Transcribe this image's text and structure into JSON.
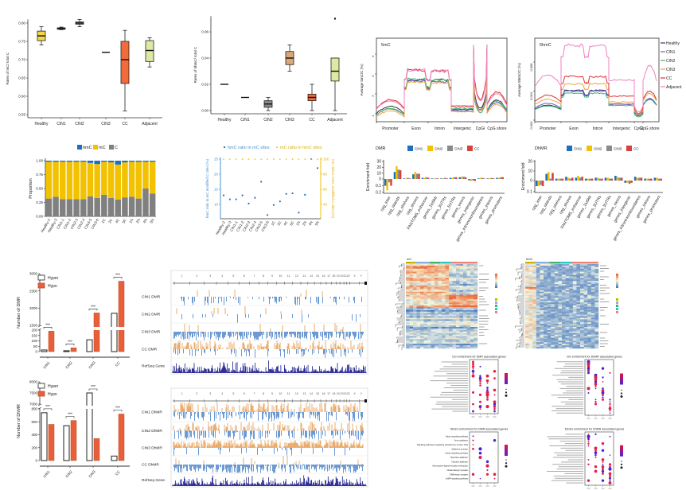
{
  "chart_data": [
    {
      "type": "box",
      "ylabel": "Rates of mC/ total C",
      "yticks": [
        "0.55",
        "0.60",
        "0.65",
        "0.70",
        "0.75",
        "0.80"
      ],
      "ylim": [
        0.55,
        0.81
      ],
      "categories": [
        "Healthy",
        "CIN1",
        "CIN2",
        "CIN3",
        "CC",
        "Adjacent"
      ],
      "boxes": [
        {
          "min": 0.74,
          "q1": 0.752,
          "median": 0.765,
          "q3": 0.778,
          "max": 0.79,
          "color": "#f2d64b"
        },
        {
          "min": 0.782,
          "q1": 0.783,
          "median": 0.785,
          "q3": 0.787,
          "max": 0.789,
          "color": "#555555"
        },
        {
          "min": 0.79,
          "q1": 0.797,
          "median": 0.8,
          "q3": 0.803,
          "max": 0.81,
          "color": "#8a8a8a"
        },
        {
          "min": 0.72,
          "q1": 0.72,
          "median": 0.72,
          "q3": 0.72,
          "max": 0.72,
          "color": "#d9a877"
        },
        {
          "min": 0.56,
          "q1": 0.635,
          "median": 0.7,
          "q3": 0.75,
          "max": 0.78,
          "color": "#f26b3a"
        },
        {
          "min": 0.68,
          "q1": 0.695,
          "median": 0.725,
          "q3": 0.752,
          "max": 0.76,
          "color": "#dfe9a3"
        }
      ]
    },
    {
      "type": "box",
      "ylabel": "Rates of 5hmC/ total C",
      "yticks": [
        "0.00",
        "0.02",
        "0.04",
        "0.06"
      ],
      "ylim": [
        0,
        0.072
      ],
      "categories": [
        "Healthy",
        "CIN1",
        "CIN2",
        "CIN3",
        "CC",
        "Adjacent"
      ],
      "boxes": [
        {
          "min": 0.02,
          "q1": 0.02,
          "median": 0.02,
          "q3": 0.02,
          "max": 0.02,
          "color": "#f2d64b"
        },
        {
          "min": 0.01,
          "q1": 0.01,
          "median": 0.01,
          "q3": 0.01,
          "max": 0.01,
          "color": "#555555"
        },
        {
          "min": 0.0,
          "q1": 0.0025,
          "median": 0.005,
          "q3": 0.0075,
          "max": 0.01,
          "color": "#8a8a8a"
        },
        {
          "min": 0.03,
          "q1": 0.035,
          "median": 0.04,
          "q3": 0.045,
          "max": 0.05,
          "color": "#d9a877"
        },
        {
          "min": 0.0,
          "q1": 0.0075,
          "median": 0.01,
          "q3": 0.0125,
          "max": 0.02,
          "color": "#f26b3a"
        },
        {
          "min": 0.0,
          "q1": 0.0225,
          "median": 0.03,
          "q3": 0.04,
          "max": 0.04,
          "outliers": [
            0.07
          ],
          "color": "#dfe9a3"
        }
      ]
    },
    {
      "type": "line",
      "title": "5mC",
      "ylabel": "Average 5mC/C (%)",
      "yticks": [
        "1",
        "2",
        "3",
        "4"
      ],
      "ylim": [
        0.5,
        4.6
      ],
      "regions": [
        "Promoter",
        "Exon",
        "Intron",
        "Intergenic",
        "CpGi",
        "CpG shore"
      ],
      "series": [
        {
          "name": "Healthy",
          "color": "#333333",
          "values": [
            1.2,
            2.7,
            2.7,
            1.2,
            1.7,
            1.6
          ]
        },
        {
          "name": "CIN1",
          "color": "#6a5acd",
          "values": [
            1.1,
            2.65,
            2.6,
            1.15,
            1.6,
            1.5
          ]
        },
        {
          "name": "CIN2",
          "color": "#3cb371",
          "values": [
            1.1,
            2.75,
            2.7,
            1.25,
            1.4,
            1.55
          ]
        },
        {
          "name": "CIN3",
          "color": "#f0a040",
          "values": [
            1.0,
            2.6,
            2.55,
            1.1,
            1.5,
            1.4
          ]
        },
        {
          "name": "CC",
          "color": "#e03030",
          "values": [
            1.5,
            3.2,
            3.15,
            1.35,
            2.3,
            2.0
          ]
        },
        {
          "name": "Adjacent",
          "color": "#f080c0",
          "values": [
            1.45,
            3.2,
            3.15,
            1.4,
            2.2,
            1.9
          ]
        }
      ]
    },
    {
      "type": "line",
      "title": "5hmC",
      "ylabel": "Average 5hmC/C (%)",
      "yticks": [
        "0.000",
        "0.004",
        "0.008"
      ],
      "ylim": [
        0,
        0.0115
      ],
      "regions": [
        "Promoter",
        "Exon",
        "Intron",
        "Intergenic",
        "CpGi",
        "CpG shore"
      ],
      "series": [
        {
          "name": "Healthy",
          "color": "#333366",
          "values": [
            0.0018,
            0.0041,
            0.0041,
            0.0022,
            0.0009,
            0.0028
          ]
        },
        {
          "name": "CIN1",
          "color": "#6a5acd",
          "values": [
            0.002,
            0.004,
            0.004,
            0.0022,
            0.0008,
            0.0028
          ]
        },
        {
          "name": "CIN2",
          "color": "#3cb371",
          "values": [
            0.0017,
            0.0037,
            0.0037,
            0.002,
            0.0006,
            0.0027
          ]
        },
        {
          "name": "CIN3",
          "color": "#f0a040",
          "values": [
            0.0025,
            0.005,
            0.005,
            0.0025,
            0.001,
            0.0035
          ]
        },
        {
          "name": "CC",
          "color": "#e03030",
          "values": [
            0.003,
            0.006,
            0.006,
            0.0033,
            0.0012,
            0.0038
          ]
        },
        {
          "name": "Adjacent",
          "color": "#f080c0",
          "values": [
            0.0055,
            0.0103,
            0.0103,
            0.0055,
            0.0015,
            0.0072
          ]
        }
      ]
    },
    {
      "type": "bar",
      "stacked": true,
      "ylabel": "Proportion",
      "yticks": [
        "0.00",
        "0.25",
        "0.50",
        "0.75",
        "1.00"
      ],
      "ylim": [
        0,
        1
      ],
      "categories": [
        "Healthy-2",
        "Healthy-3",
        "CIN1-1",
        "CIN1-2",
        "CIN2-3",
        "CIN2-4",
        "CIN3-5",
        "CIN3-6",
        "1C",
        "2C",
        "4C",
        "5C",
        "1N",
        "2N",
        "4N",
        "5N"
      ],
      "series": [
        {
          "name": "C",
          "color": "#808080",
          "values": [
            0.32,
            0.35,
            0.31,
            0.31,
            0.31,
            0.31,
            0.36,
            0.33,
            0.39,
            0.33,
            0.3,
            0.34,
            0.35,
            0.32,
            0.5,
            0.41
          ]
        },
        {
          "name": "mC",
          "color": "#f2c200",
          "values": [
            0.66,
            0.63,
            0.67,
            0.67,
            0.67,
            0.67,
            0.6,
            0.61,
            0.59,
            0.64,
            0.63,
            0.63,
            0.63,
            0.66,
            0.48,
            0.57
          ]
        },
        {
          "name": "hmC",
          "color": "#1e6fc0",
          "values": [
            0.02,
            0.02,
            0.02,
            0.02,
            0.02,
            0.02,
            0.04,
            0.06,
            0.02,
            0.03,
            0.07,
            0.03,
            0.02,
            0.02,
            0.02,
            0.02
          ]
        }
      ]
    },
    {
      "type": "scatter",
      "ylabel": "hmC ratio in mC modified C sites (%)",
      "y2label": "mC ratio in hmC modified C sites (%)",
      "yticks": [
        "10",
        "15",
        "20",
        "25"
      ],
      "ylim": [
        5.3,
        25.5
      ],
      "y2ticks": [
        "40",
        "60",
        "80",
        "100"
      ],
      "y2lim": [
        21,
        101
      ],
      "categories": [
        "Healthy-2",
        "Healthy-3",
        "CIN1-1",
        "CIN1-2",
        "CIN2-3",
        "CIN2-4",
        "CIN3-5",
        "CIN3-6",
        "1C",
        "2C",
        "4C",
        "5C",
        "1N",
        "2N",
        "4N",
        "5N"
      ],
      "series": [
        {
          "name": "hmC ratio in mC sites",
          "color": "#1e6fc0",
          "axis": "left",
          "values": [
            13,
            11.7,
            11.7,
            13,
            10.3,
            12.2,
            17.5,
            6.5,
            9.8,
            11,
            13.5,
            13.7,
            7.3,
            13.2,
            25,
            22
          ]
        },
        {
          "name": "mC ratio in hmC sites",
          "color": "#f2c200",
          "axis": "right",
          "values": [
            100,
            100,
            100,
            100,
            100,
            100,
            100,
            100,
            100,
            100,
            100,
            100,
            100,
            100,
            100,
            100
          ]
        }
      ]
    },
    {
      "type": "bar",
      "legend_title": "DMR",
      "ylabel": "Enrichment fold",
      "yticks_pos": [
        "30",
        "20",
        "10",
        "0"
      ],
      "yticks_neg": [
        "0.1",
        "0.2"
      ],
      "ylim_pos": 30,
      "ylim_neg": 0.2,
      "categories": [
        "cpg_inter",
        "cpg_islands",
        "cpg_shelves",
        "cpg_shores",
        "FANTOM5_enhancer",
        "genes_1to5kb",
        "genes_3UTRs",
        "genes_5UTRs",
        "genes_exons",
        "genes_intergenic",
        "genes_intronexonboundaries",
        "genes_introns",
        "genes_promoters"
      ],
      "series": [
        {
          "name": "CIN1",
          "color": "#1e6fc0",
          "values": [
            -0.1,
            12,
            1,
            8,
            2,
            1,
            1,
            2,
            3,
            -0.02,
            1,
            1,
            2
          ]
        },
        {
          "name": "CIN2",
          "color": "#f2c200",
          "values": [
            -0.17,
            22,
            1,
            12,
            2,
            1,
            1,
            2,
            4,
            -0.03,
            2,
            1,
            2
          ]
        },
        {
          "name": "CIN3",
          "color": "#8a8a8a",
          "values": [
            -0.05,
            16,
            2,
            9,
            3,
            1,
            2,
            3,
            4,
            -0.02,
            2,
            2,
            3
          ]
        },
        {
          "name": "CC",
          "color": "#d94040",
          "values": [
            -0.1,
            15,
            1,
            9,
            2,
            1,
            1,
            3,
            3,
            -0.03,
            1,
            1,
            3
          ]
        }
      ]
    },
    {
      "type": "bar",
      "legend_title": "DhMR",
      "ylabel": "Enrichment fold",
      "yticks_pos": [
        "20",
        "10",
        "0"
      ],
      "yticks_neg": [
        "0.1"
      ],
      "ylim_pos": 20,
      "ylim_neg": 0.1,
      "categories": [
        "cpg_inter",
        "cpg_islands",
        "cpg_shelves",
        "cpg_shores",
        "FANTOM5_enhancer",
        "genes_1to5kb",
        "genes_3UTRs",
        "genes_5UTRs",
        "genes_exons",
        "genes_intergenic",
        "genes_intronexonboundaries",
        "genes_introns",
        "genes_promoters"
      ],
      "series": [
        {
          "name": "CIN1",
          "color": "#1e6fc0",
          "values": [
            -0.05,
            7,
            2,
            4,
            3,
            2,
            3,
            3,
            5,
            -0.02,
            4,
            2,
            3
          ]
        },
        {
          "name": "CIN2",
          "color": "#f2c200",
          "values": [
            -0.05,
            9,
            2,
            3,
            5,
            2,
            3,
            3,
            4,
            -0.02,
            3,
            2,
            3
          ]
        },
        {
          "name": "CIN3",
          "color": "#8a8a8a",
          "values": [
            -0.04,
            2,
            2,
            2,
            3,
            2,
            2,
            2,
            3,
            -0.03,
            3,
            2,
            2
          ]
        },
        {
          "name": "CC",
          "color": "#d94040",
          "values": [
            -0.05,
            8,
            2,
            3,
            4,
            2,
            2,
            2,
            3,
            -0.02,
            3,
            2,
            2
          ]
        }
      ]
    },
    {
      "type": "bar",
      "ylabel": "Number of DMR",
      "broken_axis": true,
      "yticks_low": [
        "0",
        "50",
        "100",
        "150",
        "200"
      ],
      "yticks_high": [
        "1500",
        "2000",
        "2500",
        "3000"
      ],
      "categories": [
        "CIN1",
        "CIN2",
        "CIN3",
        "CC"
      ],
      "significance": "***",
      "series": [
        {
          "name": "Hyper",
          "color": "#ffffff",
          "values": [
            15,
            8,
            110,
            1850
          ]
        },
        {
          "name": "Hypo",
          "color": "#e8603a",
          "values": [
            190,
            35,
            1860,
            2780
          ]
        }
      ]
    },
    {
      "type": "bar",
      "ylabel": "Number of DhMR",
      "broken_axis": true,
      "yticks_low": [
        "0",
        "200",
        "400",
        "600",
        "800"
      ],
      "yticks_high": [
        "7000",
        "7500",
        "8000"
      ],
      "categories": [
        "CIN1",
        "CIN2",
        "CIN3",
        "CC"
      ],
      "significance": "***",
      "series": [
        {
          "name": "Hyper",
          "color": "#ffffff",
          "values": [
            740,
            540,
            7500,
            70
          ]
        },
        {
          "name": "Hypo",
          "color": "#e8603a",
          "values": [
            560,
            620,
            340,
            720
          ]
        }
      ]
    }
  ],
  "genome_browser": {
    "chromosomes": [
      "1",
      "2",
      "3",
      "4",
      "5",
      "6",
      "7",
      "8",
      "9",
      "10",
      "11",
      "12",
      "13",
      "14",
      "15",
      "16",
      "17",
      "18",
      "19",
      "20",
      "21",
      "22",
      "X",
      "Y"
    ],
    "dmr_tracks": [
      "CIN1 DMR",
      "CIN2 DMR",
      "CIN3 DMR",
      "CC DMR",
      "RefSeq Gene"
    ],
    "dhmr_tracks": [
      "CIN1 DhMR",
      "CIN2 DhMR",
      "CIN3 DhMR",
      "CC DhMR",
      "RefSeq Gene"
    ],
    "hyper_color": "#e08a30",
    "hypo_color": "#2f6fc0",
    "gene_color": "#1a1a8c"
  },
  "heatmaps": [
    {
      "title": "mC"
    },
    {
      "title": "hmC"
    }
  ],
  "enrichment_dotplots": [
    {
      "title": "GO enrichment for DMR associated genes"
    },
    {
      "title": "KEGG enrichment for DMR associated genes",
      "terms": [
        "Hippo signaling pathway",
        "Axon guidance",
        "Signaling pathways regulating pluripotency of stem cells",
        "Adherens junction",
        "Insulin signaling pathway",
        "Morphine addiction",
        "Nicotine addiction",
        "Neuroactive ligand-receptor interaction",
        "Glutamatergic synapse",
        "GABAergic synapse",
        "cAMP signaling pathway"
      ]
    },
    {
      "title": "GO enrichment for DhMR associated genes"
    },
    {
      "title": "KEGG enrichment for DhMR associated genes"
    }
  ]
}
